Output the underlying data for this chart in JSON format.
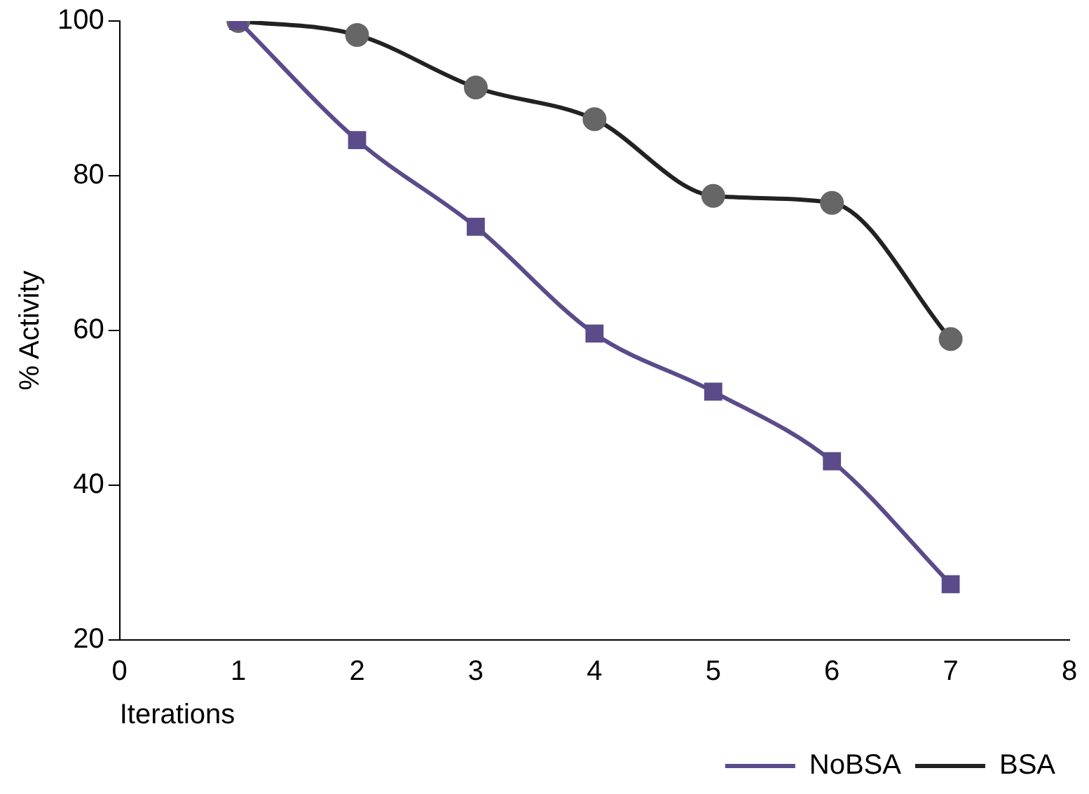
{
  "chart_data": {
    "type": "line",
    "xlabel": "Iterations",
    "ylabel": "% Activity",
    "xlim": [
      0,
      8
    ],
    "xticks": [
      0,
      1,
      2,
      3,
      4,
      5,
      6,
      7,
      8
    ],
    "ylim": [
      20,
      100
    ],
    "yticks": [
      20,
      40,
      60,
      80,
      100
    ],
    "grid": false,
    "legend": "bottom right",
    "line_style": "solid",
    "series": [
      {
        "name": "NoBSA",
        "color": "#5b4b8a",
        "marker": "square",
        "x": [
          1,
          2,
          3,
          4,
          5,
          6,
          7
        ],
        "values": [
          100,
          84.6,
          73.4,
          59.6,
          52.1,
          43.1,
          27.2
        ]
      },
      {
        "name": "BSA",
        "color": "#222222",
        "marker": "circle",
        "x": [
          1,
          2,
          3,
          4,
          5,
          6,
          7
        ],
        "values": [
          100,
          98.2,
          91.4,
          87.3,
          77.4,
          76.5,
          58.9
        ]
      }
    ]
  }
}
